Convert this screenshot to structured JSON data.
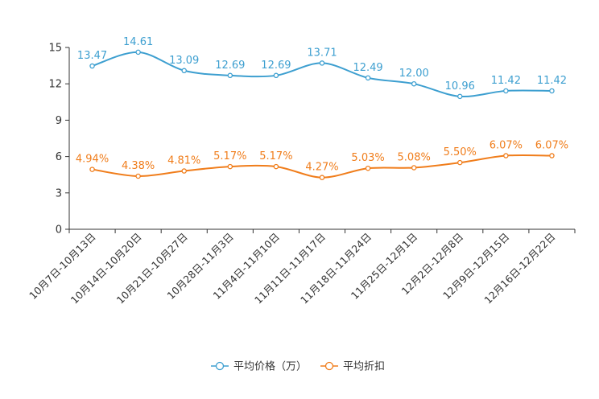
{
  "chart_data": {
    "type": "line",
    "title": "",
    "xlabel": "",
    "ylabel": "",
    "ylim": [
      0,
      15
    ],
    "yticks": [
      0,
      3,
      6,
      9,
      12,
      15
    ],
    "grid": false,
    "legend_position": "bottom-center",
    "categories": [
      "10月7日-10月13日",
      "10月14日-10月20日",
      "10月21日-10月27日",
      "10月28日-11月3日",
      "11月4日-11月10日",
      "11月11日-11月17日",
      "11月18日-11月24日",
      "11月25日-12月1日",
      "12月2日-12月8日",
      "12月9日-12月15日",
      "12月16日-12月22日"
    ],
    "series": [
      {
        "name": "平均价格（万）",
        "color": "#3d9fd0",
        "values": [
          13.47,
          14.61,
          13.09,
          12.69,
          12.69,
          13.71,
          12.49,
          12.0,
          10.96,
          11.42,
          11.42
        ],
        "labels": [
          "13.47",
          "14.61",
          "13.09",
          "12.69",
          "12.69",
          "13.71",
          "12.49",
          "12.00",
          "10.96",
          "11.42",
          "11.42"
        ]
      },
      {
        "name": "平均折扣",
        "color": "#f07d1b",
        "values": [
          4.94,
          4.38,
          4.81,
          5.17,
          5.17,
          4.27,
          5.03,
          5.08,
          5.5,
          6.07,
          6.07
        ],
        "labels": [
          "4.94%",
          "4.38%",
          "4.81%",
          "5.17%",
          "5.17%",
          "4.27%",
          "5.03%",
          "5.08%",
          "5.50%",
          "6.07%",
          "6.07%"
        ]
      }
    ]
  }
}
